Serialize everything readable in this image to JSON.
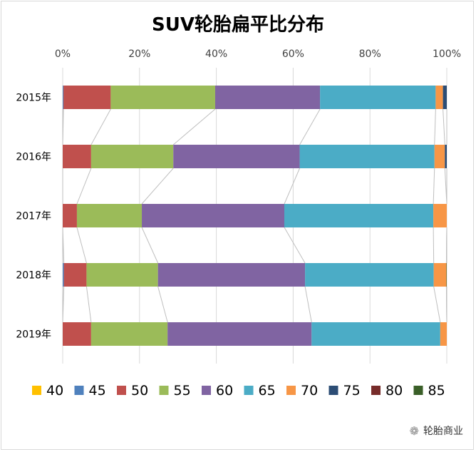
{
  "chart_data": {
    "type": "bar",
    "orientation": "horizontal",
    "stacked": "percent",
    "title": "SUV轮胎扁平比分布",
    "categories": [
      "2015年",
      "2016年",
      "2017年",
      "2018年",
      "2019年"
    ],
    "xlim": [
      0,
      100
    ],
    "xticks": [
      "0%",
      "20%",
      "40%",
      "60%",
      "80%",
      "100%"
    ],
    "grid": true,
    "legend_position": "bottom",
    "series": [
      {
        "name": "40",
        "color": "#FFC000",
        "values": [
          0,
          0,
          0,
          0,
          0
        ]
      },
      {
        "name": "45",
        "color": "#4F81BD",
        "values": [
          0.2,
          0,
          0,
          0.3,
          0
        ]
      },
      {
        "name": "50",
        "color": "#C0504D",
        "values": [
          12.3,
          7.4,
          3.7,
          5.9,
          7.4
        ]
      },
      {
        "name": "55",
        "color": "#9BBB59",
        "values": [
          27.2,
          21.4,
          16.9,
          18.6,
          19.9
        ]
      },
      {
        "name": "60",
        "color": "#8064A2",
        "values": [
          27.3,
          32.9,
          37.1,
          38.3,
          37.5
        ]
      },
      {
        "name": "65",
        "color": "#4BACC6",
        "values": [
          30.1,
          35.1,
          38.8,
          33.5,
          33.5
        ]
      },
      {
        "name": "70",
        "color": "#F79646",
        "values": [
          1.9,
          2.7,
          3.5,
          3.3,
          1.7
        ]
      },
      {
        "name": "75",
        "color": "#2C4D75",
        "values": [
          1.0,
          0.5,
          0,
          0,
          0
        ]
      },
      {
        "name": "80",
        "color": "#772C2A",
        "values": [
          0,
          0,
          0,
          0,
          0
        ]
      },
      {
        "name": "85",
        "color": "#3A5F28",
        "values": [
          0,
          0,
          0,
          0.1,
          0
        ]
      }
    ]
  },
  "watermark": "轮胎商业"
}
